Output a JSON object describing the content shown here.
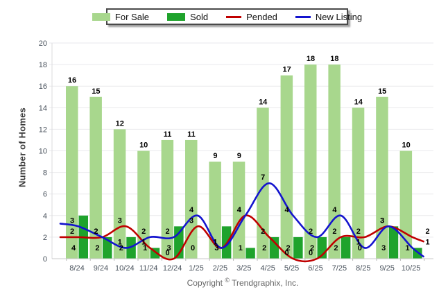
{
  "y_axis_title": "Number of Homes",
  "copyright": {
    "prefix": "Copyright ",
    "symbol": "©",
    "suffix": " Trendgraphix, Inc."
  },
  "chart_data": {
    "type": "bar+line",
    "categories": [
      "8/24",
      "9/24",
      "10/24",
      "11/24",
      "12/24",
      "1/25",
      "2/25",
      "3/25",
      "4/25",
      "5/25",
      "6/25",
      "7/25",
      "8/25",
      "9/25",
      "10/25"
    ],
    "series": [
      {
        "name": "For Sale",
        "type": "bar",
        "color": "#A8D78D",
        "values": [
          16,
          15,
          12,
          10,
          11,
          11,
          9,
          9,
          14,
          17,
          18,
          18,
          14,
          15,
          10
        ]
      },
      {
        "name": "Sold",
        "type": "bar",
        "color": "#1FA32C",
        "values": [
          4,
          2,
          2,
          1,
          3,
          0,
          3,
          1,
          2,
          2,
          2,
          2,
          0,
          3,
          1
        ]
      },
      {
        "name": "Pended",
        "type": "line",
        "color": "#C00000",
        "values": [
          2,
          2,
          3,
          1,
          0,
          3,
          1,
          4,
          2,
          0,
          0,
          2,
          2,
          3,
          2
        ]
      },
      {
        "name": "New Listing",
        "type": "line",
        "color": "#1414CE",
        "values": [
          3,
          2,
          1,
          2,
          2,
          4,
          1,
          4,
          7,
          4,
          2,
          4,
          1,
          3,
          1
        ]
      }
    ],
    "title": "",
    "xlabel": "",
    "ylabel": "Number of Homes",
    "ylim": [
      0,
      20
    ],
    "ytick_step": 2,
    "grid": true,
    "legend_position": "top",
    "colors": {
      "grid": "#E9E9EC",
      "axis": "#C9C9C9",
      "tick_text": "#49525C",
      "value_label": "#000000"
    }
  }
}
